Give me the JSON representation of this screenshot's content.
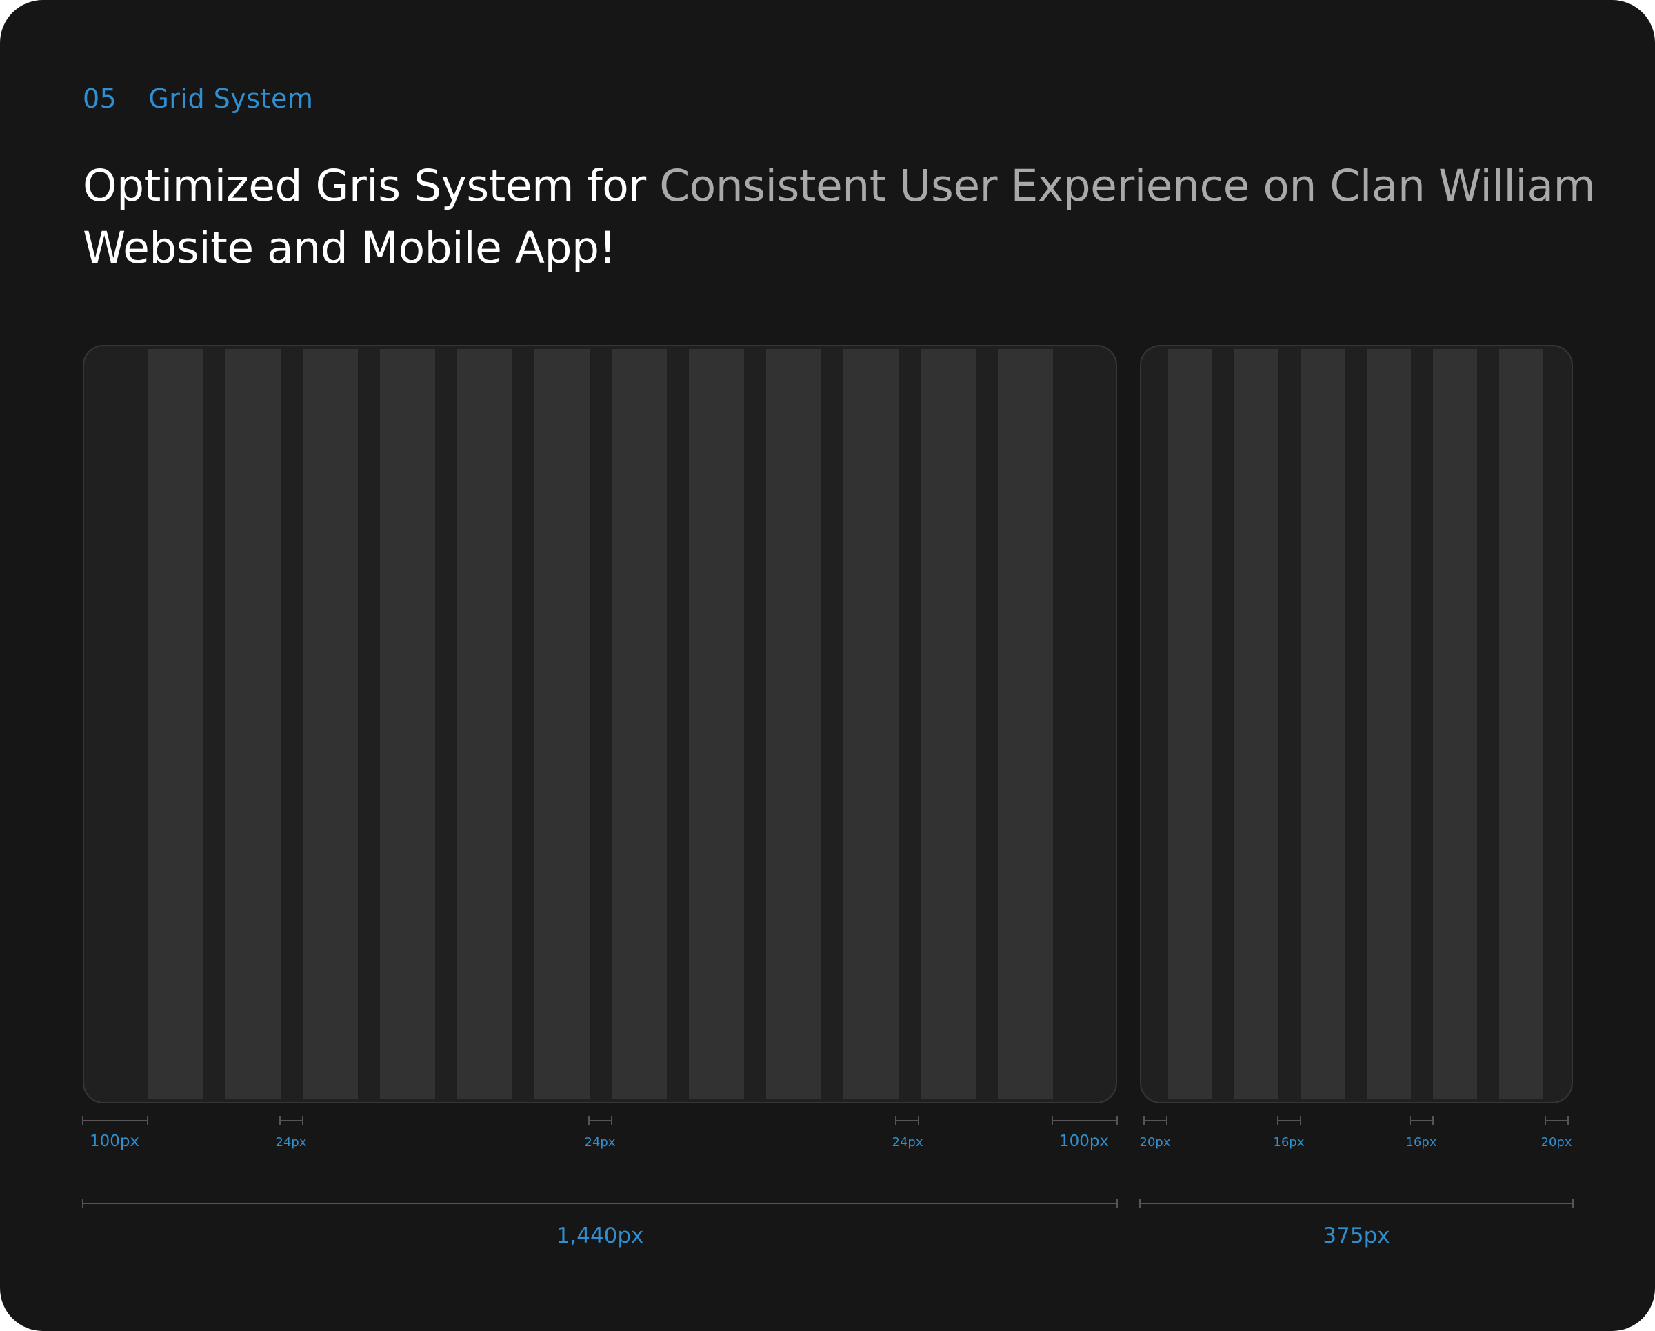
{
  "section": {
    "number": "05",
    "title": "Grid System"
  },
  "headline": {
    "part1": "Optimized Gris System for ",
    "part2": "Consistent User Experience on Clan William",
    "part3": "Website and Mobile App!"
  },
  "colors": {
    "accent": "#2f8fd0",
    "background": "#161616",
    "column": "#323232",
    "frame": "#202020",
    "muted_text": "#a9a9a9"
  },
  "desktop_grid": {
    "columns": 12,
    "margin_label": "100px",
    "gutter_label": "24px",
    "total_label": "1,440px"
  },
  "mobile_grid": {
    "columns": 6,
    "margin_label": "20px",
    "gutter_label": "16px",
    "total_label": "375px"
  }
}
